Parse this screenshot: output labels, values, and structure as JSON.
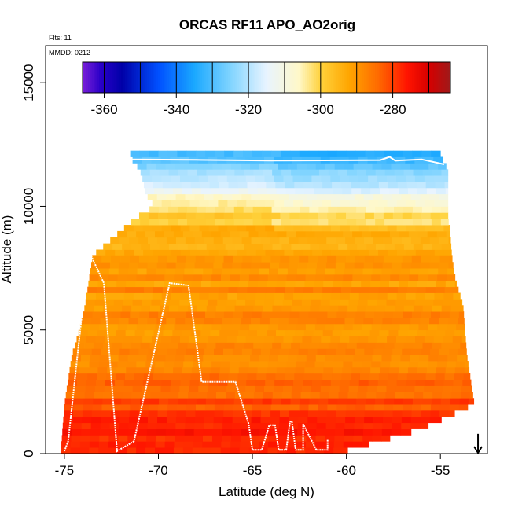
{
  "chart_data": {
    "type": "heatmap",
    "title": "ORCAS RF11 APO_AO2orig",
    "flights_note": "Flts: 11",
    "date_note": "MMDD: 0212",
    "xlabel": "Latitude (deg N)",
    "ylabel": "Altitude (m)",
    "xlim": [
      -76,
      -52.5
    ],
    "ylim": [
      0,
      16500
    ],
    "x_ticks": [
      -75,
      -70,
      -65,
      -60,
      -55
    ],
    "x_tick_labels": [
      "-75",
      "-70",
      "-65",
      "-60",
      "-55"
    ],
    "y_ticks": [
      0,
      5000,
      10000,
      15000
    ],
    "y_tick_labels": [
      "0",
      "5000",
      "10000",
      "15000"
    ],
    "colorbar": {
      "range": [
        -366,
        -264
      ],
      "ticks": [
        -360,
        -340,
        -320,
        -300,
        -280
      ],
      "tick_labels": [
        "-360",
        "-340",
        "-320",
        "-300",
        "-280"
      ],
      "segment_breaks": [
        -366,
        -360,
        -350,
        -340,
        -330,
        -320,
        -310,
        -300,
        -290,
        -280,
        -270,
        -264
      ],
      "colors": [
        {
          "value": -366,
          "color": "#7a1fd8"
        },
        {
          "value": -361,
          "color": "#2a00c8"
        },
        {
          "value": -355,
          "color": "#0000a8"
        },
        {
          "value": -345,
          "color": "#0050ff"
        },
        {
          "value": -335,
          "color": "#1aa8ff"
        },
        {
          "value": -325,
          "color": "#80d4ff"
        },
        {
          "value": -315,
          "color": "#e8f4ff"
        },
        {
          "value": -306,
          "color": "#fff8c8"
        },
        {
          "value": -300,
          "color": "#ffd23c"
        },
        {
          "value": -292,
          "color": "#ffa500"
        },
        {
          "value": -284,
          "color": "#ff6a00"
        },
        {
          "value": -276,
          "color": "#ff1400"
        },
        {
          "value": -270,
          "color": "#d60000"
        },
        {
          "value": -264,
          "color": "#9e1a1a"
        }
      ]
    },
    "field_model": {
      "description": "APO values vary with altitude; interior colour field of the curtain",
      "profile_altitude_m": [
        0,
        1000,
        2000,
        3000,
        4000,
        5000,
        6000,
        7000,
        8000,
        8500,
        9000,
        9500,
        10000,
        10500,
        11000,
        11500,
        12000
      ],
      "profile_apo": [
        -276,
        -278,
        -281,
        -285,
        -287,
        -288,
        -289,
        -290,
        -292,
        -293,
        -295,
        -298,
        -302,
        -309,
        -316,
        -322,
        -330
      ]
    },
    "coverage": {
      "description": "Latitude extent of sampled data at each altitude",
      "altitude_m": [
        0,
        1000,
        2000,
        3000,
        4000,
        5000,
        6000,
        7000,
        8000,
        9000,
        9500,
        10000,
        10500,
        11000,
        11500,
        12000
      ],
      "lat_min": [
        -75.2,
        -75.1,
        -75.0,
        -74.8,
        -74.6,
        -74.2,
        -73.9,
        -73.7,
        -73.5,
        -72.0,
        -71.3,
        -70.2,
        -70.7,
        -70.8,
        -71.0,
        -71.5
      ],
      "lat_max": [
        -60.5,
        -56.0,
        -53.2,
        -53.4,
        -53.6,
        -53.7,
        -53.8,
        -54.2,
        -54.4,
        -54.5,
        -54.6,
        -54.6,
        -54.6,
        -54.6,
        -54.6,
        -55.0
      ]
    },
    "flight_track": {
      "name": "RF11 flight altitude profile",
      "latitude": [
        -75.0,
        -74.8,
        -74.6,
        -73.7,
        -72.9,
        -72.2,
        -72.2,
        -71.3,
        -69.4,
        -68.4,
        -67.7,
        -66.8,
        -65.9,
        -65.2,
        -65.0,
        -64.5,
        -64.1,
        -63.8,
        -63.6,
        -63.2,
        -63.0,
        -62.9,
        -62.7,
        -62.3,
        -62.3,
        -61.6,
        -61.0,
        -61.0
      ],
      "altitude_m": [
        100,
        500,
        1900,
        8200,
        6900,
        100,
        100,
        500,
        6900,
        6800,
        2900,
        2900,
        2900,
        1200,
        150,
        150,
        1150,
        1150,
        150,
        150,
        1300,
        1300,
        150,
        150,
        1200,
        150,
        150,
        600
      ]
    },
    "flight_track_upper": {
      "latitude": [
        -71.6,
        -68.0,
        -64.0,
        -60.0,
        -58.2,
        -57.7,
        -57.4,
        -56.0,
        -54.8
      ],
      "altitude_m": [
        11900,
        11880,
        11850,
        11860,
        11870,
        12000,
        11850,
        11900,
        11700
      ]
    },
    "annotation": {
      "type": "arrow",
      "latitude": -53.0,
      "from_altitude_m": 800,
      "to_altitude_m": 0,
      "direction": "down"
    }
  }
}
